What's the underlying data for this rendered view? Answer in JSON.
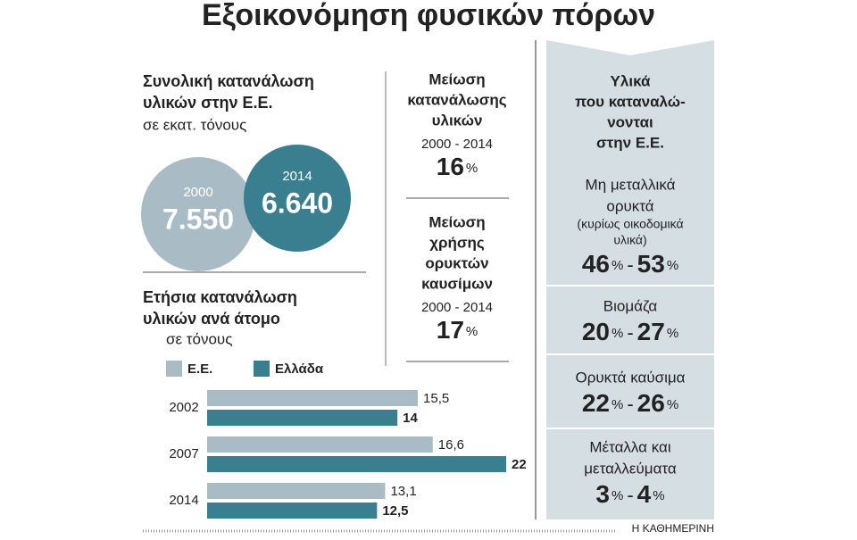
{
  "title": "Εξοικονόμηση φυσικών πόρων",
  "total": {
    "title": [
      "Συνολική κατανάλωση",
      "υλικών στην Ε.Ε."
    ],
    "unit": "σε εκατ. τόνους",
    "circles": [
      {
        "year": "2000",
        "value": 7550,
        "label": "7.550",
        "color": "#a9bcc6"
      },
      {
        "year": "2014",
        "value": 6640,
        "label": "6.640",
        "color": "#3a7f8f"
      }
    ]
  },
  "chart_data": {
    "type": "bar",
    "orientation": "horizontal",
    "title": [
      "Ετήσια κατανάλωση",
      "υλικών ανά άτομο"
    ],
    "subtitle": "σε τόνους",
    "categories": [
      "2002",
      "2007",
      "2014"
    ],
    "series": [
      {
        "name": "Ε.Ε.",
        "color": "#a9bcc6",
        "values": [
          15.5,
          16.6,
          13.1
        ],
        "value_labels": [
          "15,5",
          "16,6",
          "13,1"
        ]
      },
      {
        "name": "Ελλάδα",
        "color": "#3a7f8f",
        "values": [
          14,
          22,
          12.5
        ],
        "value_labels": [
          "14",
          "22",
          "12,5"
        ]
      }
    ]
  },
  "reductions": [
    {
      "title": [
        "Μείωση",
        "κατανάλωσης",
        "υλικών"
      ],
      "period": "2000 - 2014",
      "value": 16,
      "unit": "%"
    },
    {
      "title": [
        "Μείωση",
        "χρήσης",
        "ορυκτών",
        "καυσίμων"
      ],
      "period": "2000 - 2014",
      "value": 17,
      "unit": "%"
    }
  ],
  "materials": {
    "title": [
      "Υλικά",
      "που καταναλώ-",
      "νονται",
      "στην Ε.Ε."
    ],
    "items": [
      {
        "name": [
          "Μη μεταλλικά",
          "ορυκτά"
        ],
        "note": [
          "(κυρίως οικοδομικά",
          "υλικά)"
        ],
        "low": 46,
        "high": 53
      },
      {
        "name": [
          "Βιομάζα"
        ],
        "low": 20,
        "high": 27
      },
      {
        "name": [
          "Ορυκτά καύσιμα"
        ],
        "low": 22,
        "high": 26
      },
      {
        "name": [
          "Μέταλλα και",
          "μεταλλεύματα"
        ],
        "low": 3,
        "high": 4
      }
    ],
    "unit": "%",
    "separator": "-"
  },
  "source": "Η ΚΑΘΗΜΕΡΙΝΗ"
}
